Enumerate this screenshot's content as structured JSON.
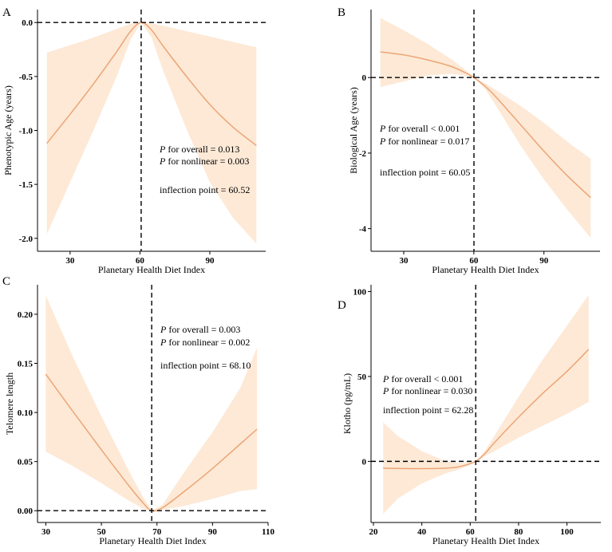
{
  "chart_data": [
    {
      "type": "line",
      "panel_label": "A",
      "xlabel": "Planetary Health Diet Index",
      "ylabel": "Phenotypic Age (years)",
      "xlim": [
        16,
        114
      ],
      "ylim": [
        -2.12,
        0.12
      ],
      "x_ticks": [
        30,
        60,
        90
      ],
      "x_tick_labels": [
        "30",
        "60",
        "90"
      ],
      "y_ticks": [
        0,
        -0.5,
        -1,
        -1.5,
        -2
      ],
      "y_tick_labels": [
        "0.0",
        "-0.5",
        "-1.0",
        "-1.5",
        "-2.0"
      ],
      "reference_x": 60.52,
      "reference_y": 0,
      "series": [
        {
          "name": "estimate",
          "x": [
            20,
            30,
            40,
            50,
            56,
            60.52,
            65,
            70,
            80,
            90,
            100,
            110
          ],
          "y": [
            -1.12,
            -0.85,
            -0.57,
            -0.27,
            -0.08,
            0,
            -0.07,
            -0.22,
            -0.5,
            -0.76,
            -0.97,
            -1.14
          ],
          "lower": [
            -1.96,
            -1.48,
            -1.0,
            -0.5,
            -0.16,
            0,
            -0.14,
            -0.45,
            -0.99,
            -1.48,
            -1.81,
            -2.05
          ],
          "upper": [
            -0.28,
            -0.21,
            -0.14,
            -0.06,
            -0.01,
            0,
            -0.01,
            -0.03,
            -0.08,
            -0.13,
            -0.18,
            -0.23
          ]
        }
      ],
      "annotations": {
        "overall": {
          "p": "P",
          "text": " for overall = 0.013"
        },
        "nonlinear": {
          "p": "P",
          "text": " for nonlinear = 0.003"
        },
        "inflection": "inflection point = 60.52"
      }
    },
    {
      "type": "line",
      "panel_label": "B",
      "xlabel": "Planetary Health Diet Index",
      "ylabel": "Biological Age (years)",
      "xlim": [
        16,
        114
      ],
      "ylim": [
        -4.6,
        1.8
      ],
      "x_ticks": [
        30,
        60,
        90
      ],
      "x_tick_labels": [
        "30",
        "60",
        "90"
      ],
      "y_ticks": [
        0,
        -2,
        -4
      ],
      "y_tick_labels": [
        "0",
        "-2",
        "-4"
      ],
      "reference_x": 60.05,
      "reference_y": 0,
      "series": [
        {
          "name": "estimate",
          "x": [
            20,
            30,
            40,
            50,
            56,
            60.05,
            65,
            70,
            80,
            90,
            100,
            110
          ],
          "y": [
            0.68,
            0.6,
            0.47,
            0.3,
            0.14,
            0,
            -0.24,
            -0.55,
            -1.25,
            -1.95,
            -2.6,
            -3.18
          ],
          "lower": [
            -0.25,
            -0.1,
            0.05,
            0.1,
            0.05,
            0,
            -0.32,
            -0.8,
            -1.8,
            -2.7,
            -3.5,
            -4.25
          ],
          "upper": [
            1.58,
            1.25,
            0.9,
            0.5,
            0.22,
            0,
            -0.16,
            -0.35,
            -0.75,
            -1.2,
            -1.7,
            -2.15
          ]
        }
      ],
      "annotations": {
        "overall": {
          "p": "P",
          "text": " for overall < 0.001"
        },
        "nonlinear": {
          "p": "P",
          "text": " for nonlinear = 0.017"
        },
        "inflection": "inflection point = 60.05"
      }
    },
    {
      "type": "line",
      "panel_label": "C",
      "xlabel": "Planetary Health Diet Index",
      "ylabel": "Telomere length",
      "xlim": [
        27,
        110
      ],
      "ylim": [
        -0.012,
        0.23
      ],
      "x_ticks": [
        30,
        50,
        70,
        90,
        110
      ],
      "x_tick_labels": [
        "30",
        "50",
        "70",
        "90",
        "110"
      ],
      "y_ticks": [
        0,
        0.05,
        0.1,
        0.15,
        0.2
      ],
      "y_tick_labels": [
        "0.00",
        "0.05",
        "0.10",
        "0.15",
        "0.20"
      ],
      "reference_x": 68.1,
      "reference_y": 0,
      "series": [
        {
          "name": "estimate",
          "x": [
            30,
            40,
            50,
            60,
            65,
            68.1,
            72,
            80,
            90,
            100,
            106
          ],
          "y": [
            0.139,
            0.1,
            0.062,
            0.025,
            0.008,
            0,
            0.003,
            0.02,
            0.043,
            0.068,
            0.083
          ],
          "lower": [
            0.06,
            0.045,
            0.028,
            0.01,
            0.002,
            0,
            0.001,
            0.005,
            0.012,
            0.02,
            0.022
          ],
          "upper": [
            0.219,
            0.155,
            0.096,
            0.04,
            0.014,
            0,
            0.006,
            0.04,
            0.08,
            0.125,
            0.166
          ]
        }
      ],
      "annotations": {
        "overall": {
          "p": "P",
          "text": " for overall = 0.003"
        },
        "nonlinear": {
          "p": "P",
          "text": " for nonlinear = 0.002"
        },
        "inflection": "inflection point = 68.10"
      }
    },
    {
      "type": "line",
      "panel_label": "D",
      "xlabel": "Planetary Health Diet Index",
      "ylabel": "Klotho (pg/mL)",
      "xlim": [
        19,
        114
      ],
      "ylim": [
        -36,
        104
      ],
      "x_ticks": [
        20,
        40,
        60,
        80,
        100
      ],
      "x_tick_labels": [
        "20",
        "40",
        "60",
        "80",
        "100"
      ],
      "y_ticks": [
        0,
        50,
        100
      ],
      "y_tick_labels": [
        "0",
        "50",
        "100"
      ],
      "reference_x": 62.28,
      "reference_y": 0,
      "series": [
        {
          "name": "estimate",
          "x": [
            24,
            30,
            40,
            50,
            56,
            62.28,
            66,
            70,
            80,
            90,
            100,
            109
          ],
          "y": [
            -4,
            -4.2,
            -4.3,
            -4,
            -3,
            0,
            4.5,
            11,
            26,
            40,
            53,
            66
          ],
          "lower": [
            -31,
            -22,
            -13,
            -7,
            -4.5,
            0,
            3,
            6,
            14,
            21,
            28,
            35
          ],
          "upper": [
            23,
            15,
            6,
            0,
            -1,
            0,
            6,
            15,
            38,
            60,
            80,
            98
          ]
        }
      ],
      "annotations": {
        "overall": {
          "p": "P",
          "text": " for overall < 0.001"
        },
        "nonlinear": {
          "p": "P",
          "text": " for nonlinear = 0.030"
        },
        "inflection": "inflection point = 62.28"
      }
    }
  ]
}
